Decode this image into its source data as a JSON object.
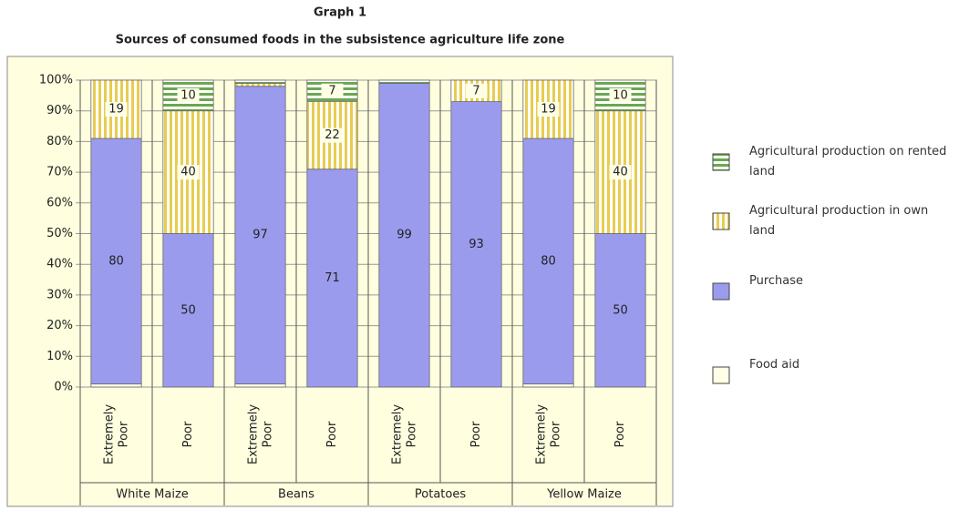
{
  "chart_data": {
    "type": "stacked-bar",
    "title": "Graph 1",
    "subtitle": "Sources of consumed foods in the subsistence agriculture life zone",
    "categories": [
      "Extremely Poor",
      "Poor",
      "Extremely Poor",
      "Poor",
      "Extremely Poor",
      "Poor",
      "Extremely Poor",
      "Poor"
    ],
    "groups": [
      "White Maize",
      "Beans",
      "Potatoes",
      "Yellow Maize"
    ],
    "series": [
      {
        "name": "Food aid",
        "color": "#ffffe6",
        "values": [
          1,
          0,
          1,
          0,
          0,
          0,
          1,
          0
        ]
      },
      {
        "name": "Purchase",
        "color": "#9b9bee",
        "values": [
          80,
          50,
          97,
          71,
          99,
          93,
          80,
          50
        ]
      },
      {
        "name": "Agricultural production in own land",
        "color": "#e8cc50",
        "pattern": "vertical-stripes",
        "values": [
          19,
          40,
          1,
          22,
          0,
          7,
          19,
          40
        ]
      },
      {
        "name": "Agricultural production on rented land",
        "color": "#6aa84f",
        "pattern": "horizontal-stripes",
        "values": [
          0,
          10,
          1,
          7,
          1,
          0,
          0,
          10
        ]
      }
    ],
    "ylim": [
      0,
      100
    ],
    "yticks": [
      {
        "value": 0,
        "label": "0%"
      },
      {
        "value": 10,
        "label": "10%"
      },
      {
        "value": 20,
        "label": "20%"
      },
      {
        "value": 30,
        "label": "30%"
      },
      {
        "value": 40,
        "label": "40%"
      },
      {
        "value": 50,
        "label": "50%"
      },
      {
        "value": 60,
        "label": "60%"
      },
      {
        "value": 70,
        "label": "70%"
      },
      {
        "value": 80,
        "label": "80%"
      },
      {
        "value": 90,
        "label": "90%"
      },
      {
        "value": 100,
        "label": "100%"
      }
    ],
    "grid": true
  }
}
